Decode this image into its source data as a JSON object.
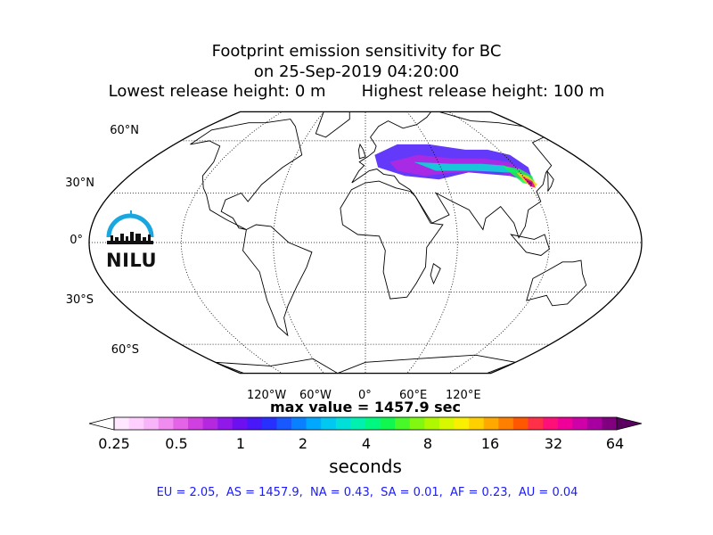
{
  "title": {
    "line1": "Footprint emission sensitivity for BC",
    "line2": "on 25-Sep-2019 04:20:00",
    "line3": "Lowest release height: 0 m       Highest release height: 100 m"
  },
  "map": {
    "projection": "Robinson",
    "lat_labels": [
      "60°N",
      "30°N",
      "0°",
      "30°S",
      "60°S"
    ],
    "lon_labels": [
      "120°W",
      "60°W",
      "0°",
      "60°E",
      "120°E"
    ]
  },
  "logo": {
    "text": "NILU",
    "color": "#1aa7e0"
  },
  "max_value": "max value = 1457.9 sec",
  "colorbar": {
    "ticks": [
      "0.25",
      "0.5",
      "1",
      "2",
      "4",
      "8",
      "16",
      "32",
      "64"
    ],
    "label": "seconds",
    "colors": [
      "#ffe8ff",
      "#ffd0ff",
      "#f8b4f8",
      "#f08cf0",
      "#e464e8",
      "#d040e0",
      "#b428e0",
      "#9018e8",
      "#6c10f0",
      "#4818f8",
      "#2830ff",
      "#1858ff",
      "#0880ff",
      "#00a8ff",
      "#00c8f0",
      "#00e0d8",
      "#00f0b0",
      "#00f880",
      "#10f850",
      "#48f828",
      "#80f810",
      "#b0f800",
      "#d8f800",
      "#f8f000",
      "#ffd000",
      "#ffa800",
      "#ff8000",
      "#ff5800",
      "#ff3048",
      "#ff1078",
      "#f00098",
      "#d000a8",
      "#a800a0",
      "#800080"
    ]
  },
  "region_stats": "EU = 2.05,  AS = 1457.9,  NA = 0.43,  SA = 0.01,  AF = 0.23,  AU = 0.04"
}
